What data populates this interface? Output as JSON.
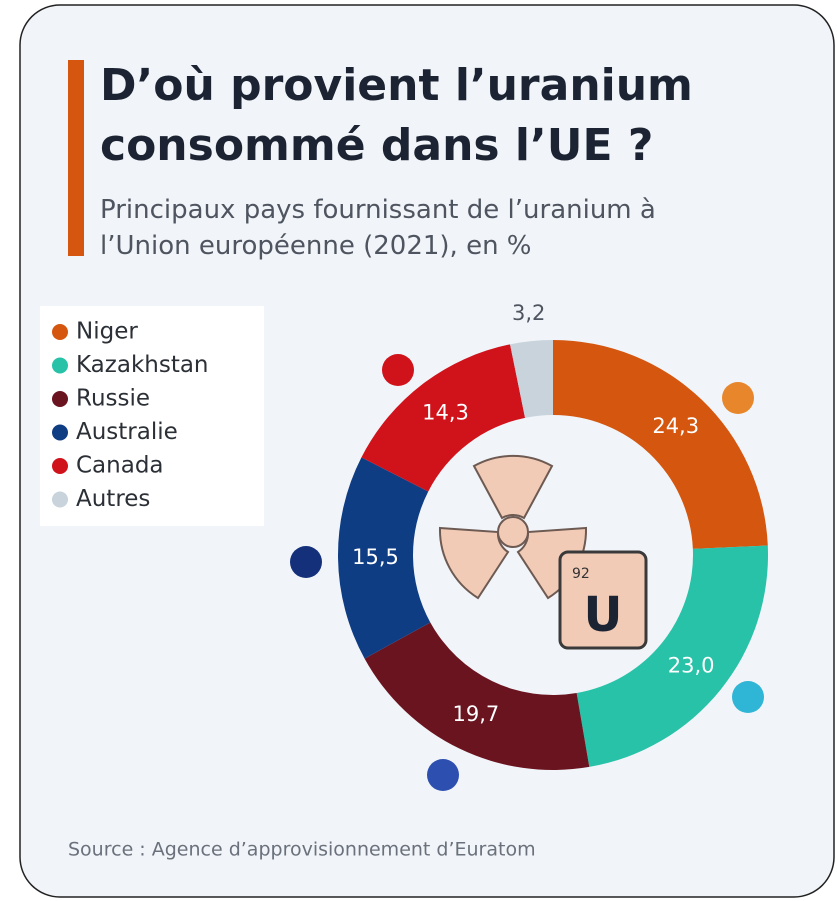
{
  "chart_data": {
    "type": "pie",
    "title": "D’où provient l’uranium consommé dans l’UE ?",
    "subtitle": "Principaux pays fournissant de l’uranium à l’Union européenne (2021), en %",
    "categories": [
      "Niger",
      "Kazakhstan",
      "Russie",
      "Australie",
      "Canada",
      "Autres"
    ],
    "values": [
      24.3,
      23.0,
      19.7,
      15.5,
      14.3,
      3.2
    ],
    "value_labels": [
      "24,3",
      "23,0",
      "19,7",
      "15,5",
      "14,3",
      "3,2"
    ],
    "colors": [
      "#d4560f",
      "#27c2a8",
      "#6a1420",
      "#0f3d84",
      "#d0121b",
      "#c8d3dc"
    ],
    "legend": "upper left",
    "annotations": [
      "92",
      "U"
    ],
    "source": "Source : Agence d’approvisionnement d’Euratom"
  }
}
